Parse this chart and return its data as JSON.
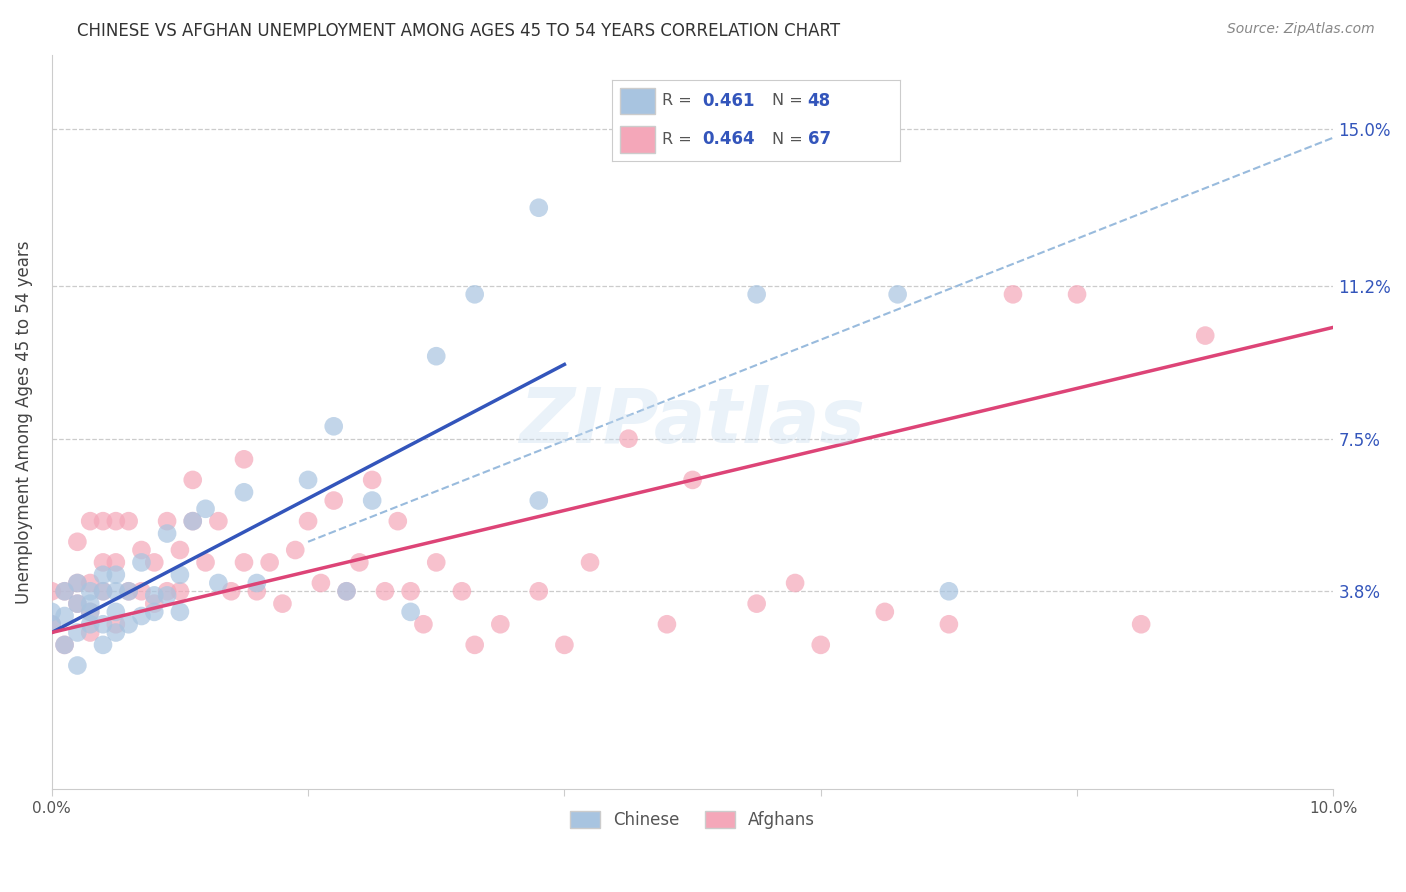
{
  "title": "CHINESE VS AFGHAN UNEMPLOYMENT AMONG AGES 45 TO 54 YEARS CORRELATION CHART",
  "source": "Source: ZipAtlas.com",
  "ylabel": "Unemployment Among Ages 45 to 54 years",
  "xlim": [
    0.0,
    0.1
  ],
  "ylim": [
    -0.01,
    0.168
  ],
  "plot_ylim": [
    -0.01,
    0.168
  ],
  "xtick_positions": [
    0.0,
    0.02,
    0.04,
    0.06,
    0.08,
    0.1
  ],
  "xtick_labels": [
    "0.0%",
    "",
    "",
    "",
    "",
    "10.0%"
  ],
  "ytick_positions": [
    0.038,
    0.075,
    0.112,
    0.15
  ],
  "ytick_labels": [
    "3.8%",
    "7.5%",
    "11.2%",
    "15.0%"
  ],
  "chinese_color": "#a8c4e0",
  "afghan_color": "#f4a7b9",
  "line_chinese_color": "#3355bb",
  "line_afghan_color": "#dd4477",
  "dashed_color": "#99bbdd",
  "label_color": "#3355bb",
  "watermark": "ZIPatlas",
  "legend_r_chinese": "0.461",
  "legend_n_chinese": "48",
  "legend_r_afghan": "0.464",
  "legend_n_afghan": "67",
  "chinese_line_x": [
    0.0,
    0.04
  ],
  "chinese_line_y": [
    0.028,
    0.093
  ],
  "afghan_line_x": [
    0.0,
    0.1
  ],
  "afghan_line_y": [
    0.028,
    0.102
  ],
  "dashed_line_x": [
    0.02,
    0.1
  ],
  "dashed_line_y": [
    0.05,
    0.148
  ],
  "chinese_x": [
    0.0,
    0.0,
    0.001,
    0.001,
    0.001,
    0.002,
    0.002,
    0.002,
    0.002,
    0.003,
    0.003,
    0.003,
    0.003,
    0.004,
    0.004,
    0.004,
    0.004,
    0.005,
    0.005,
    0.005,
    0.005,
    0.006,
    0.006,
    0.007,
    0.007,
    0.008,
    0.008,
    0.009,
    0.009,
    0.01,
    0.01,
    0.011,
    0.012,
    0.013,
    0.015,
    0.016,
    0.02,
    0.022,
    0.023,
    0.025,
    0.028,
    0.03,
    0.033,
    0.038,
    0.038,
    0.055,
    0.066,
    0.07
  ],
  "chinese_y": [
    0.03,
    0.033,
    0.025,
    0.032,
    0.038,
    0.028,
    0.035,
    0.04,
    0.02,
    0.03,
    0.033,
    0.035,
    0.038,
    0.025,
    0.03,
    0.038,
    0.042,
    0.028,
    0.033,
    0.038,
    0.042,
    0.03,
    0.038,
    0.032,
    0.045,
    0.033,
    0.037,
    0.037,
    0.052,
    0.033,
    0.042,
    0.055,
    0.058,
    0.04,
    0.062,
    0.04,
    0.065,
    0.078,
    0.038,
    0.06,
    0.033,
    0.095,
    0.11,
    0.06,
    0.131,
    0.11,
    0.11,
    0.038
  ],
  "afghan_x": [
    0.0,
    0.0,
    0.001,
    0.001,
    0.002,
    0.002,
    0.002,
    0.003,
    0.003,
    0.003,
    0.003,
    0.004,
    0.004,
    0.004,
    0.005,
    0.005,
    0.005,
    0.006,
    0.006,
    0.007,
    0.007,
    0.008,
    0.008,
    0.009,
    0.009,
    0.01,
    0.01,
    0.011,
    0.011,
    0.012,
    0.013,
    0.014,
    0.015,
    0.015,
    0.016,
    0.017,
    0.018,
    0.019,
    0.02,
    0.021,
    0.022,
    0.023,
    0.024,
    0.025,
    0.026,
    0.027,
    0.028,
    0.029,
    0.03,
    0.032,
    0.033,
    0.035,
    0.038,
    0.04,
    0.042,
    0.045,
    0.048,
    0.05,
    0.055,
    0.058,
    0.06,
    0.065,
    0.07,
    0.075,
    0.08,
    0.085,
    0.09
  ],
  "afghan_y": [
    0.03,
    0.038,
    0.025,
    0.038,
    0.035,
    0.04,
    0.05,
    0.028,
    0.033,
    0.04,
    0.055,
    0.038,
    0.045,
    0.055,
    0.03,
    0.045,
    0.055,
    0.038,
    0.055,
    0.038,
    0.048,
    0.035,
    0.045,
    0.038,
    0.055,
    0.038,
    0.048,
    0.055,
    0.065,
    0.045,
    0.055,
    0.038,
    0.045,
    0.07,
    0.038,
    0.045,
    0.035,
    0.048,
    0.055,
    0.04,
    0.06,
    0.038,
    0.045,
    0.065,
    0.038,
    0.055,
    0.038,
    0.03,
    0.045,
    0.038,
    0.025,
    0.03,
    0.038,
    0.025,
    0.045,
    0.075,
    0.03,
    0.065,
    0.035,
    0.04,
    0.025,
    0.033,
    0.03,
    0.11,
    0.11,
    0.03,
    0.1
  ]
}
